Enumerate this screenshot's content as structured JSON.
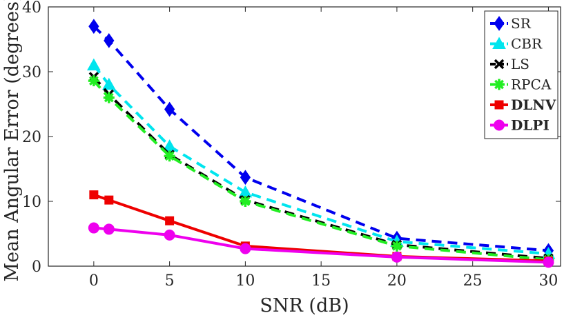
{
  "chart_data": {
    "type": "line",
    "title": "",
    "xlabel": "SNR (dB)",
    "ylabel": "Mean Angular Error (degrees)",
    "xlim": [
      -3,
      30.8
    ],
    "ylim": [
      0,
      40
    ],
    "xticks": [
      0,
      5,
      10,
      15,
      20,
      25,
      30
    ],
    "yticks": [
      0,
      10,
      20,
      30,
      40
    ],
    "x": [
      0,
      1,
      5,
      10,
      20,
      30
    ],
    "grid": false,
    "legend_position": "top-right",
    "series": [
      {
        "name": "SR",
        "color": "#0000ee",
        "line": "dashed",
        "marker": "diamond",
        "bold": false,
        "values": [
          37.0,
          34.8,
          24.2,
          13.7,
          4.3,
          2.4
        ]
      },
      {
        "name": "CBR",
        "color": "#00e5ee",
        "line": "dashed",
        "marker": "triangle",
        "bold": false,
        "values": [
          31.0,
          28.0,
          18.5,
          11.4,
          3.8,
          1.9
        ]
      },
      {
        "name": "LS",
        "color": "#000000",
        "line": "dashed",
        "marker": "x",
        "bold": false,
        "values": [
          29.2,
          26.5,
          17.2,
          10.2,
          3.3,
          1.2
        ]
      },
      {
        "name": "RPCA",
        "color": "#22ee22",
        "line": "dashed",
        "marker": "asterisk",
        "bold": false,
        "values": [
          28.6,
          26.0,
          17.0,
          10.0,
          3.1,
          1.0
        ]
      },
      {
        "name": "DLNV",
        "color": "#ee0000",
        "line": "solid",
        "marker": "square",
        "bold": true,
        "values": [
          11.0,
          10.2,
          7.0,
          3.1,
          1.5,
          0.8
        ]
      },
      {
        "name": "DLPI",
        "color": "#ee00ee",
        "line": "solid",
        "marker": "circle",
        "bold": true,
        "values": [
          5.9,
          5.7,
          4.8,
          2.7,
          1.4,
          0.6
        ]
      }
    ]
  }
}
